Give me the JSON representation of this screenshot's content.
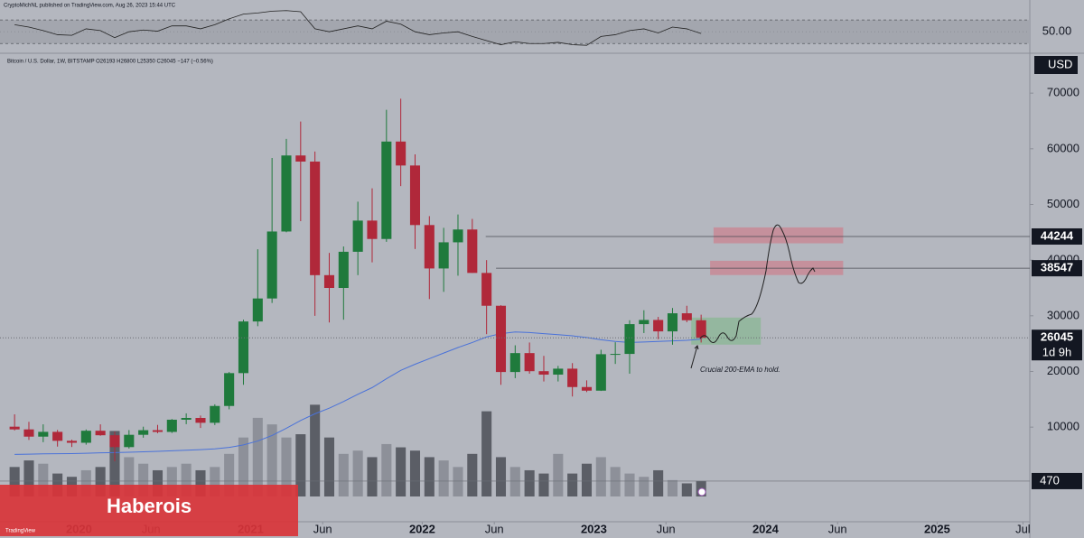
{
  "chart_data": {
    "type": "candlestick",
    "header": "CryptoMichNL published on TradingView.com, Aug 26, 2023 15:44 UTC",
    "legend": "Bitcoin / U.S. Dollar, 1W, BITSTAMP  O26193  H26800  L25350  C26045  −147 (−0.56%)",
    "currency": "USD",
    "x": [
      "2019-08",
      "2019-09",
      "2019-10",
      "2019-11",
      "2019-12",
      "2020-01",
      "2020-02",
      "2020-03",
      "2020-04",
      "2020-05",
      "2020-06",
      "2020-07",
      "2020-08",
      "2020-09",
      "2020-10",
      "2020-11",
      "2020-12",
      "2021-01",
      "2021-02",
      "2021-03",
      "2021-04",
      "2021-05",
      "2021-06",
      "2021-07",
      "2021-08",
      "2021-09",
      "2021-10",
      "2021-11",
      "2021-12",
      "2022-01",
      "2022-02",
      "2022-03",
      "2022-04",
      "2022-05",
      "2022-06",
      "2022-07",
      "2022-08",
      "2022-09",
      "2022-10",
      "2022-11",
      "2022-12",
      "2023-01",
      "2023-02",
      "2023-03",
      "2023-04",
      "2023-05",
      "2023-06",
      "2023-07",
      "2023-08"
    ],
    "open": [
      10080,
      9590,
      8290,
      9150,
      7540,
      7190,
      9350,
      8540,
      6410,
      8620,
      9450,
      9140,
      11330,
      11650,
      10780,
      13800,
      19700,
      28980,
      33110,
      45140,
      58800,
      57700,
      37300,
      35000,
      41500,
      47100,
      43800,
      61300,
      57000,
      46300,
      38500,
      43200,
      45500,
      37700,
      31800,
      19900,
      23300,
      20050,
      19430,
      20500,
      17200,
      16550,
      23100,
      23150,
      28500,
      29250,
      27200,
      30450,
      29200
    ],
    "high": [
      12300,
      10950,
      10500,
      9500,
      7750,
      9580,
      10500,
      9190,
      9470,
      10080,
      10400,
      11450,
      12470,
      12080,
      14100,
      19900,
      29300,
      41950,
      58350,
      61780,
      64900,
      59500,
      41300,
      42450,
      50500,
      52900,
      67000,
      69000,
      59000,
      47900,
      45800,
      48200,
      47400,
      40000,
      31900,
      24700,
      25200,
      22800,
      21000,
      21500,
      18400,
      23900,
      25250,
      29200,
      31000,
      29800,
      31400,
      31800,
      30200
    ],
    "low": [
      9400,
      7700,
      7300,
      6500,
      6430,
      6850,
      8450,
      3850,
      6150,
      8100,
      8900,
      8950,
      10530,
      9850,
      10370,
      13200,
      17600,
      28130,
      32300,
      45000,
      47000,
      30000,
      28800,
      29300,
      37300,
      39600,
      43300,
      53300,
      42000,
      33000,
      34300,
      37200,
      37700,
      26700,
      17600,
      18800,
      19600,
      18200,
      18200,
      15500,
      16300,
      16500,
      21350,
      19600,
      26900,
      25800,
      24800,
      28850,
      25200
    ],
    "close": [
      9590,
      8290,
      9150,
      7540,
      7190,
      9350,
      8540,
      6410,
      8620,
      9450,
      9140,
      11330,
      11650,
      10780,
      13800,
      19700,
      28980,
      33110,
      45140,
      58800,
      57700,
      37300,
      35000,
      41500,
      47100,
      43800,
      61300,
      57000,
      46300,
      38500,
      43200,
      45500,
      37700,
      31800,
      19900,
      23300,
      20050,
      19430,
      20500,
      17200,
      16550,
      23100,
      23150,
      28500,
      29250,
      27200,
      30450,
      29200,
      26045
    ],
    "volume": [
      900,
      1100,
      1000,
      700,
      600,
      800,
      900,
      2000,
      1200,
      1000,
      800,
      900,
      1000,
      800,
      900,
      1300,
      1800,
      2400,
      2200,
      1800,
      1900,
      2800,
      1800,
      1300,
      1400,
      1200,
      1600,
      1500,
      1400,
      1200,
      1100,
      900,
      1300,
      2600,
      1200,
      900,
      800,
      700,
      1300,
      700,
      1000,
      1200,
      900,
      700,
      600,
      800,
      500,
      400,
      470
    ],
    "ema": [
      5100,
      5150,
      5200,
      5230,
      5250,
      5300,
      5380,
      5420,
      5480,
      5560,
      5640,
      5750,
      5860,
      5960,
      6100,
      6350,
      6800,
      7500,
      8500,
      9800,
      11200,
      12400,
      13400,
      14600,
      15900,
      17100,
      18700,
      20200,
      21300,
      22300,
      23300,
      24300,
      25200,
      26200,
      26800,
      27100,
      27000,
      26800,
      26600,
      26400,
      26100,
      25700,
      25400,
      25200,
      25300,
      25400,
      25500,
      25600,
      25800
    ],
    "rsi": [
      62,
      58,
      52,
      45,
      44,
      55,
      52,
      40,
      50,
      53,
      51,
      60,
      60,
      55,
      62,
      72,
      80,
      82,
      85,
      86,
      84,
      55,
      50,
      55,
      60,
      55,
      68,
      63,
      50,
      45,
      48,
      50,
      42,
      35,
      28,
      33,
      30,
      30,
      32,
      28,
      27,
      42,
      45,
      52,
      55,
      48,
      58,
      55,
      47
    ],
    "rsilim": [
      15,
      104
    ],
    "rsi_bands": [
      30,
      70
    ],
    "rsi_ticks": [
      {
        "value": 50,
        "label": "50.00"
      }
    ],
    "xlim": [
      2019.54,
      2025.54
    ],
    "xticks": [
      2020,
      {
        "value": 2020.42,
        "label": "Jun"
      },
      2021,
      {
        "value": 2021.42,
        "label": "Jun"
      },
      2022,
      {
        "value": 2022.42,
        "label": "Jun"
      },
      2023,
      {
        "value": 2023.42,
        "label": "Jun"
      },
      2024,
      {
        "value": 2024.42,
        "label": "Jun"
      },
      2025,
      {
        "value": 2025.5,
        "label": "Jul"
      }
    ],
    "ylim": [
      -7000,
      77000
    ],
    "yticks": [
      10000,
      20000,
      30000,
      40000,
      50000,
      60000,
      70000
    ],
    "vlim": [
      0,
      13500
    ],
    "levels": [
      {
        "value": 44244,
        "from": 2022.37
      },
      {
        "value": 38547,
        "from": 2022.43
      }
    ],
    "zones": [
      {
        "x": [
          2023.7,
          2024.45
        ],
        "y": [
          43100,
          45800
        ],
        "color": "#c98a97"
      },
      {
        "x": [
          2023.68,
          2024.45
        ],
        "y": [
          37400,
          39800
        ],
        "color": "#c98a97"
      },
      {
        "x": [
          2023.57,
          2023.97
        ],
        "y": [
          24900,
          29600
        ],
        "color": "#8fb89a"
      }
    ],
    "countdown": "1d 9h",
    "annotation": "Crucial 200-EMA to hold.",
    "up_color": "#1f7a3c",
    "down_color": "#b0283a",
    "ema_color": "#4a72d9",
    "banner": "Haberois",
    "logo": "TradingView"
  }
}
